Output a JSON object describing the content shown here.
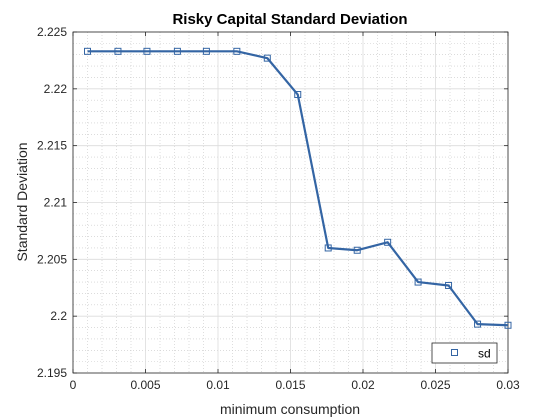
{
  "chart_data": {
    "type": "line",
    "title": "Risky Capital Standard Deviation",
    "xlabel": "minimum consumption",
    "ylabel": "Standard Deviation",
    "xlim": [
      0,
      0.03
    ],
    "ylim": [
      2.195,
      2.225
    ],
    "xticks": [
      0,
      0.005,
      0.01,
      0.015,
      0.02,
      0.025,
      0.03
    ],
    "xtick_labels": [
      "0",
      "0.005",
      "0.01",
      "0.015",
      "0.02",
      "0.025",
      "0.03"
    ],
    "yticks": [
      2.195,
      2.2,
      2.205,
      2.21,
      2.215,
      2.22,
      2.225
    ],
    "ytick_labels": [
      "2.195",
      "2.2",
      "2.205",
      "2.21",
      "2.215",
      "2.22",
      "2.225"
    ],
    "grid": true,
    "minor_grid": true,
    "legend_position": "bottom-right",
    "series": [
      {
        "name": "sd",
        "color": "#3465a4",
        "marker": "square",
        "x": [
          0.001,
          0.0031,
          0.0051,
          0.0072,
          0.0092,
          0.0113,
          0.0134,
          0.0155,
          0.0176,
          0.0196,
          0.0217,
          0.0238,
          0.0259,
          0.0279,
          0.03
        ],
        "y": [
          2.2233,
          2.2233,
          2.2233,
          2.2233,
          2.2233,
          2.2233,
          2.2227,
          2.2195,
          2.206,
          2.2058,
          2.2065,
          2.203,
          2.2027,
          2.1993,
          2.1992
        ]
      }
    ]
  }
}
